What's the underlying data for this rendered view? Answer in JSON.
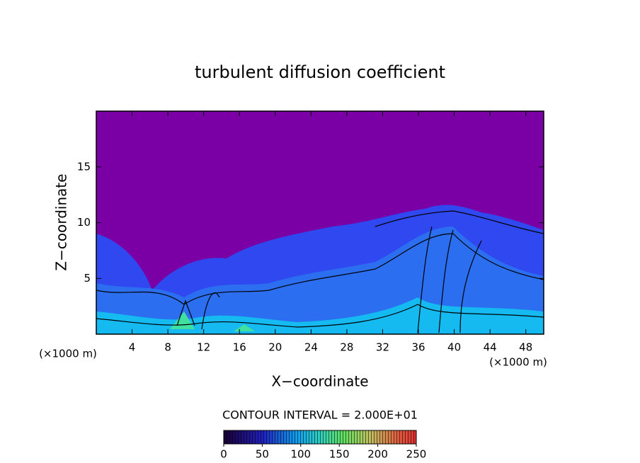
{
  "chart_data": {
    "type": "contour",
    "title": "turbulent diffusion coefficient",
    "x_label": "X−coordinate",
    "y_label": "Z−coordinate",
    "x_unit_label": "(×1000 m)",
    "xlim": [
      0,
      50
    ],
    "xticks": [
      4,
      8,
      12,
      16,
      20,
      24,
      28,
      32,
      36,
      40,
      44,
      48
    ],
    "ylim": [
      0,
      20
    ],
    "yticks": [
      5,
      10,
      15
    ],
    "contour_interval_label": "CONTOUR INTERVAL = 2.000E+01",
    "colorbar": {
      "lim": [
        0,
        250
      ],
      "ticks": [
        0,
        50,
        100,
        150,
        200,
        250
      ]
    }
  }
}
